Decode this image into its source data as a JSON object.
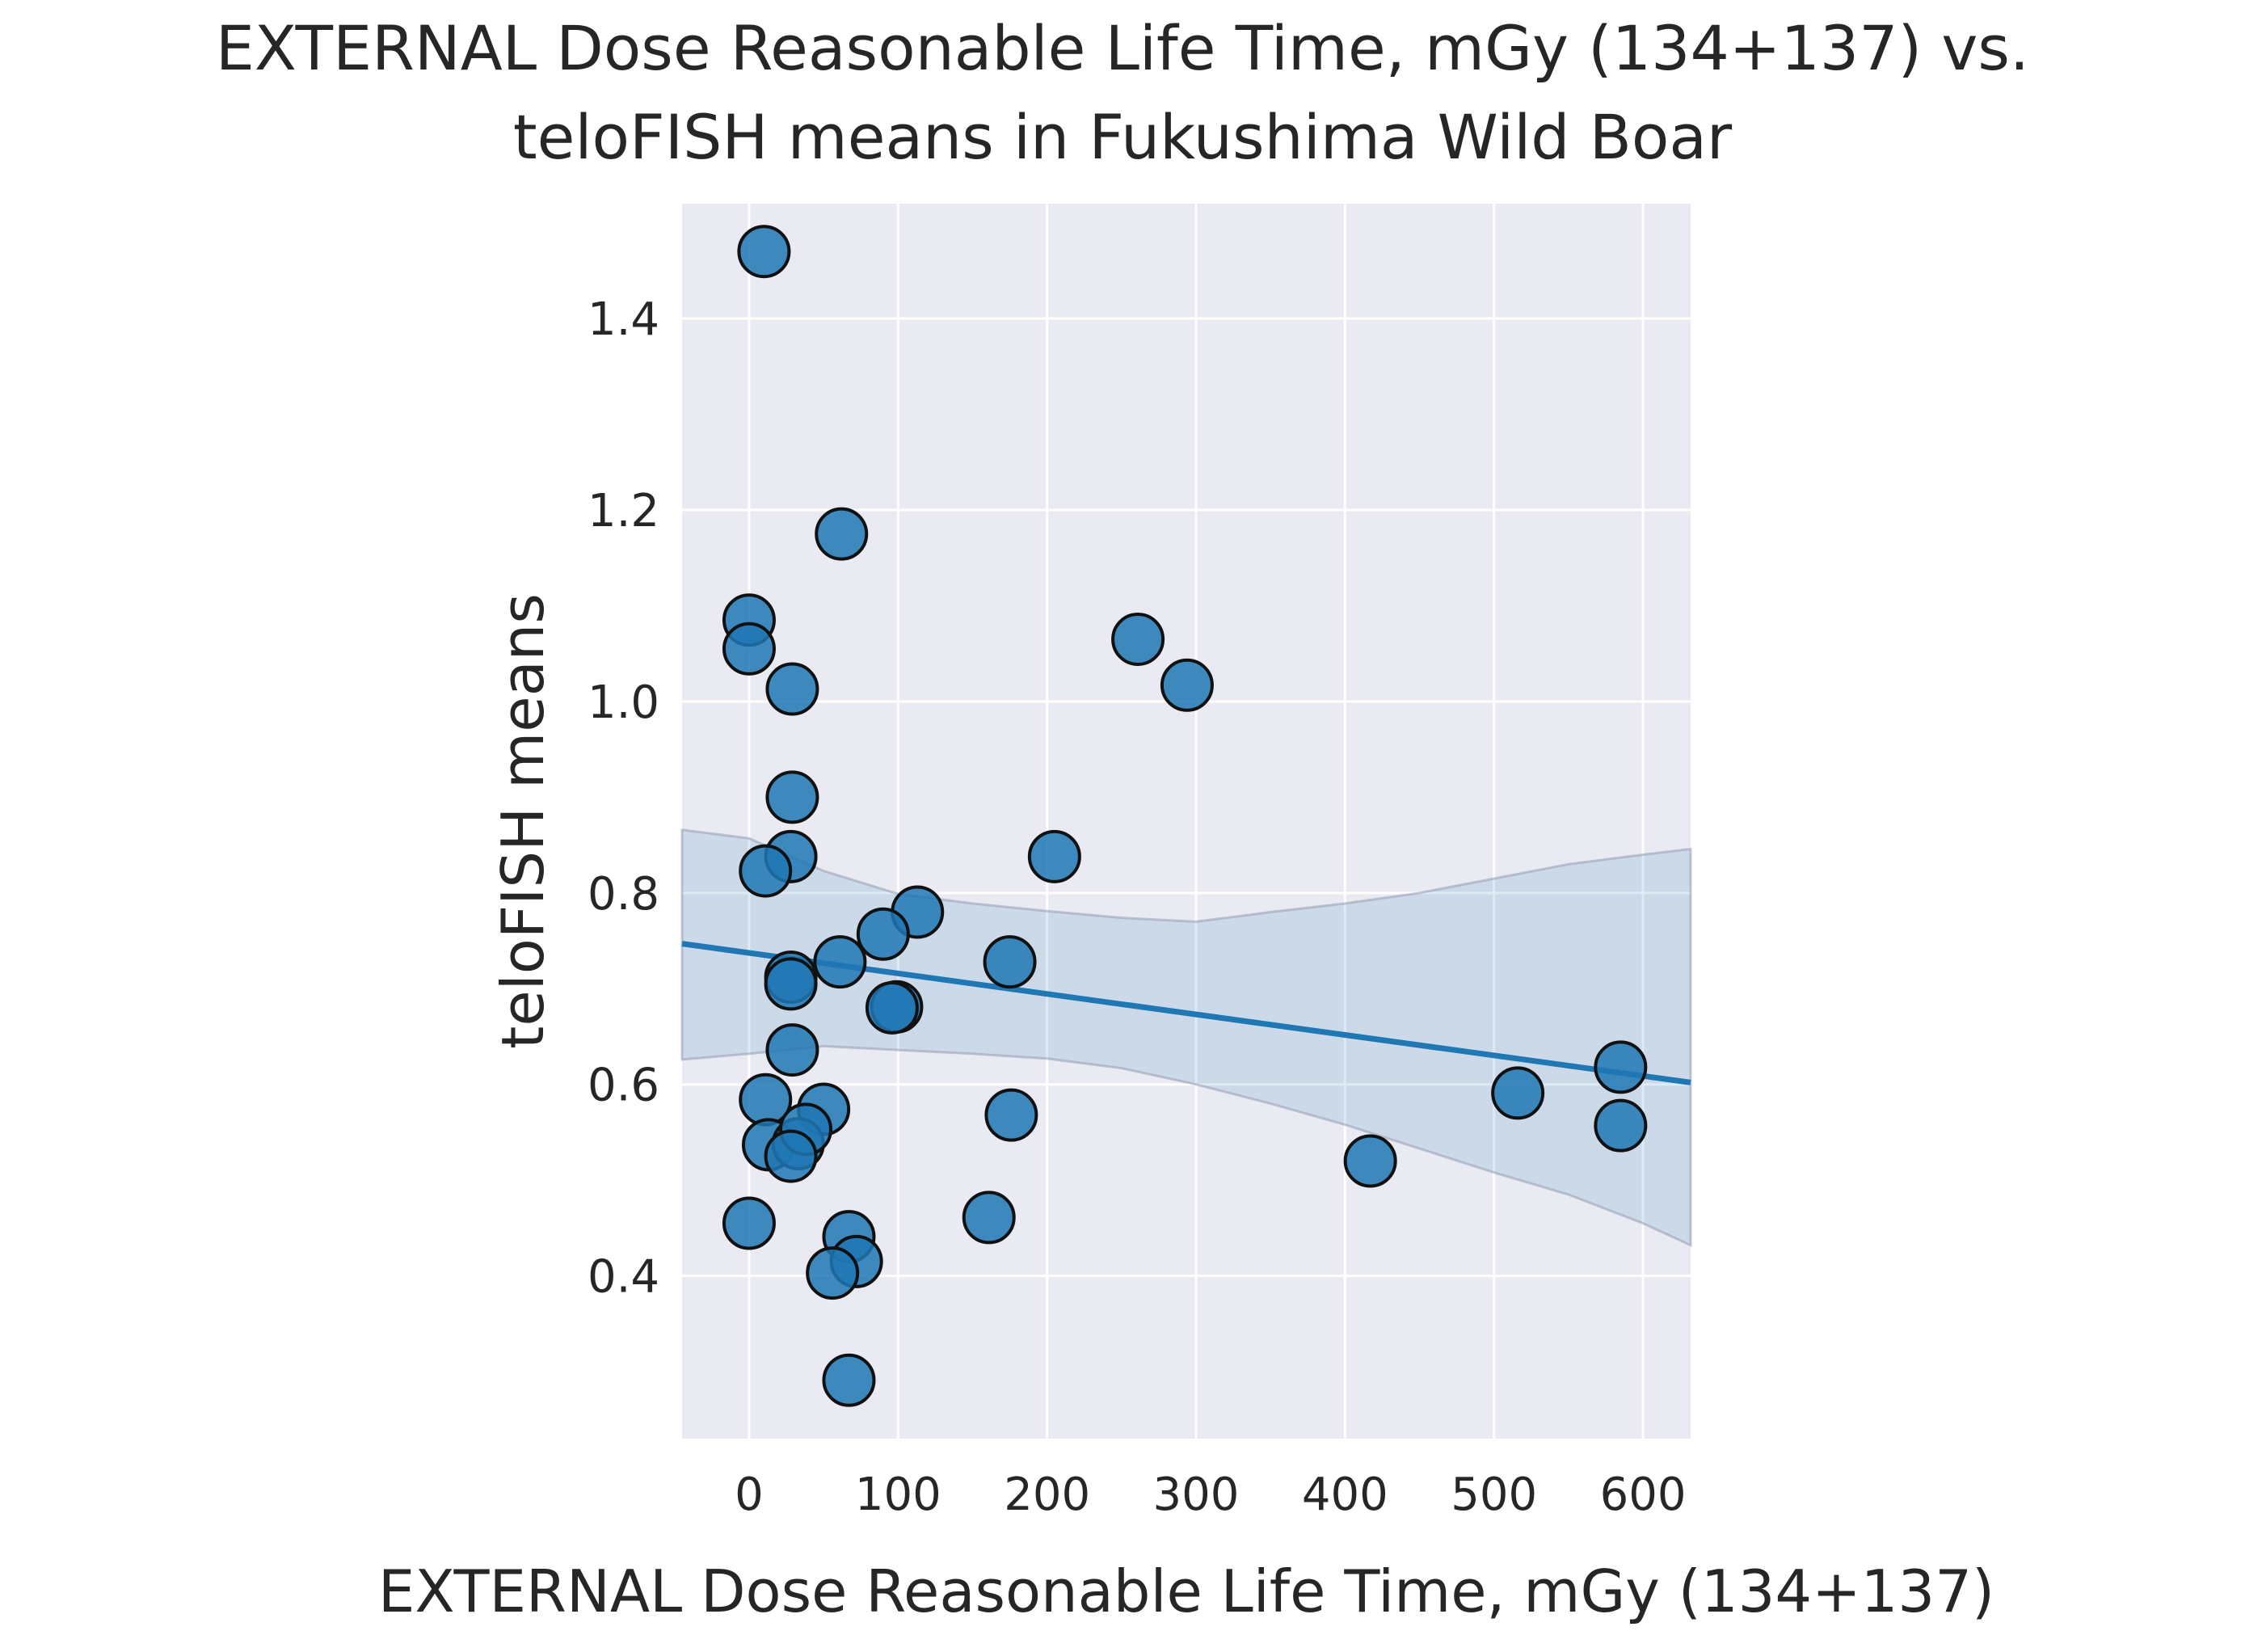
{
  "chart_data": {
    "type": "scatter",
    "title": "EXTERNAL Dose Reasonable Life Time, mGy (134+137) vs.\nteloFISH means in Fukushima Wild Boar",
    "xlabel": "EXTERNAL Dose Reasonable Life Time, mGy (134+137)",
    "ylabel": "teloFISH means",
    "xlim": [
      -45,
      632
    ],
    "ylim": [
      0.23,
      1.52
    ],
    "xticks": [
      0,
      100,
      200,
      300,
      400,
      500,
      600
    ],
    "yticks": [
      0.4,
      0.6,
      0.8,
      1.0,
      1.2,
      1.4
    ],
    "ytick_labels": [
      "0.4",
      "0.6",
      "0.8",
      "1.0",
      "1.2",
      "1.4"
    ],
    "grid": true,
    "series": [
      {
        "kind": "points",
        "color": "#1f77b4",
        "x": [
          10,
          62,
          0,
          0,
          29,
          29,
          28,
          11,
          205,
          261,
          294,
          113,
          90,
          61,
          175,
          28,
          28,
          99,
          96,
          29,
          11,
          50,
          176,
          13,
          33,
          38,
          28,
          0,
          161,
          67,
          72,
          56,
          67,
          417,
          516,
          585,
          585
        ],
        "y": [
          1.47,
          1.175,
          1.085,
          1.055,
          1.013,
          0.9,
          0.838,
          0.823,
          0.838,
          1.065,
          1.017,
          0.78,
          0.757,
          0.728,
          0.728,
          0.712,
          0.705,
          0.681,
          0.68,
          0.636,
          0.584,
          0.574,
          0.568,
          0.537,
          0.538,
          0.553,
          0.525,
          0.455,
          0.461,
          0.441,
          0.415,
          0.403,
          0.291,
          0.52,
          0.591,
          0.618,
          0.557
        ]
      },
      {
        "kind": "regression",
        "color": "#1f77b4",
        "x": [
          -45,
          632
        ],
        "y": [
          0.747,
          0.602
        ]
      }
    ],
    "ci_band": {
      "x": [
        -45,
        0,
        50,
        100,
        150,
        200,
        250,
        300,
        350,
        400,
        450,
        500,
        550,
        600,
        632
      ],
      "upper": [
        0.866,
        0.857,
        0.823,
        0.799,
        0.789,
        0.781,
        0.774,
        0.77,
        0.78,
        0.789,
        0.8,
        0.815,
        0.83,
        0.84,
        0.846
      ],
      "lower": [
        0.626,
        0.632,
        0.64,
        0.636,
        0.632,
        0.627,
        0.617,
        0.6,
        0.58,
        0.558,
        0.533,
        0.508,
        0.485,
        0.455,
        0.432
      ]
    }
  }
}
